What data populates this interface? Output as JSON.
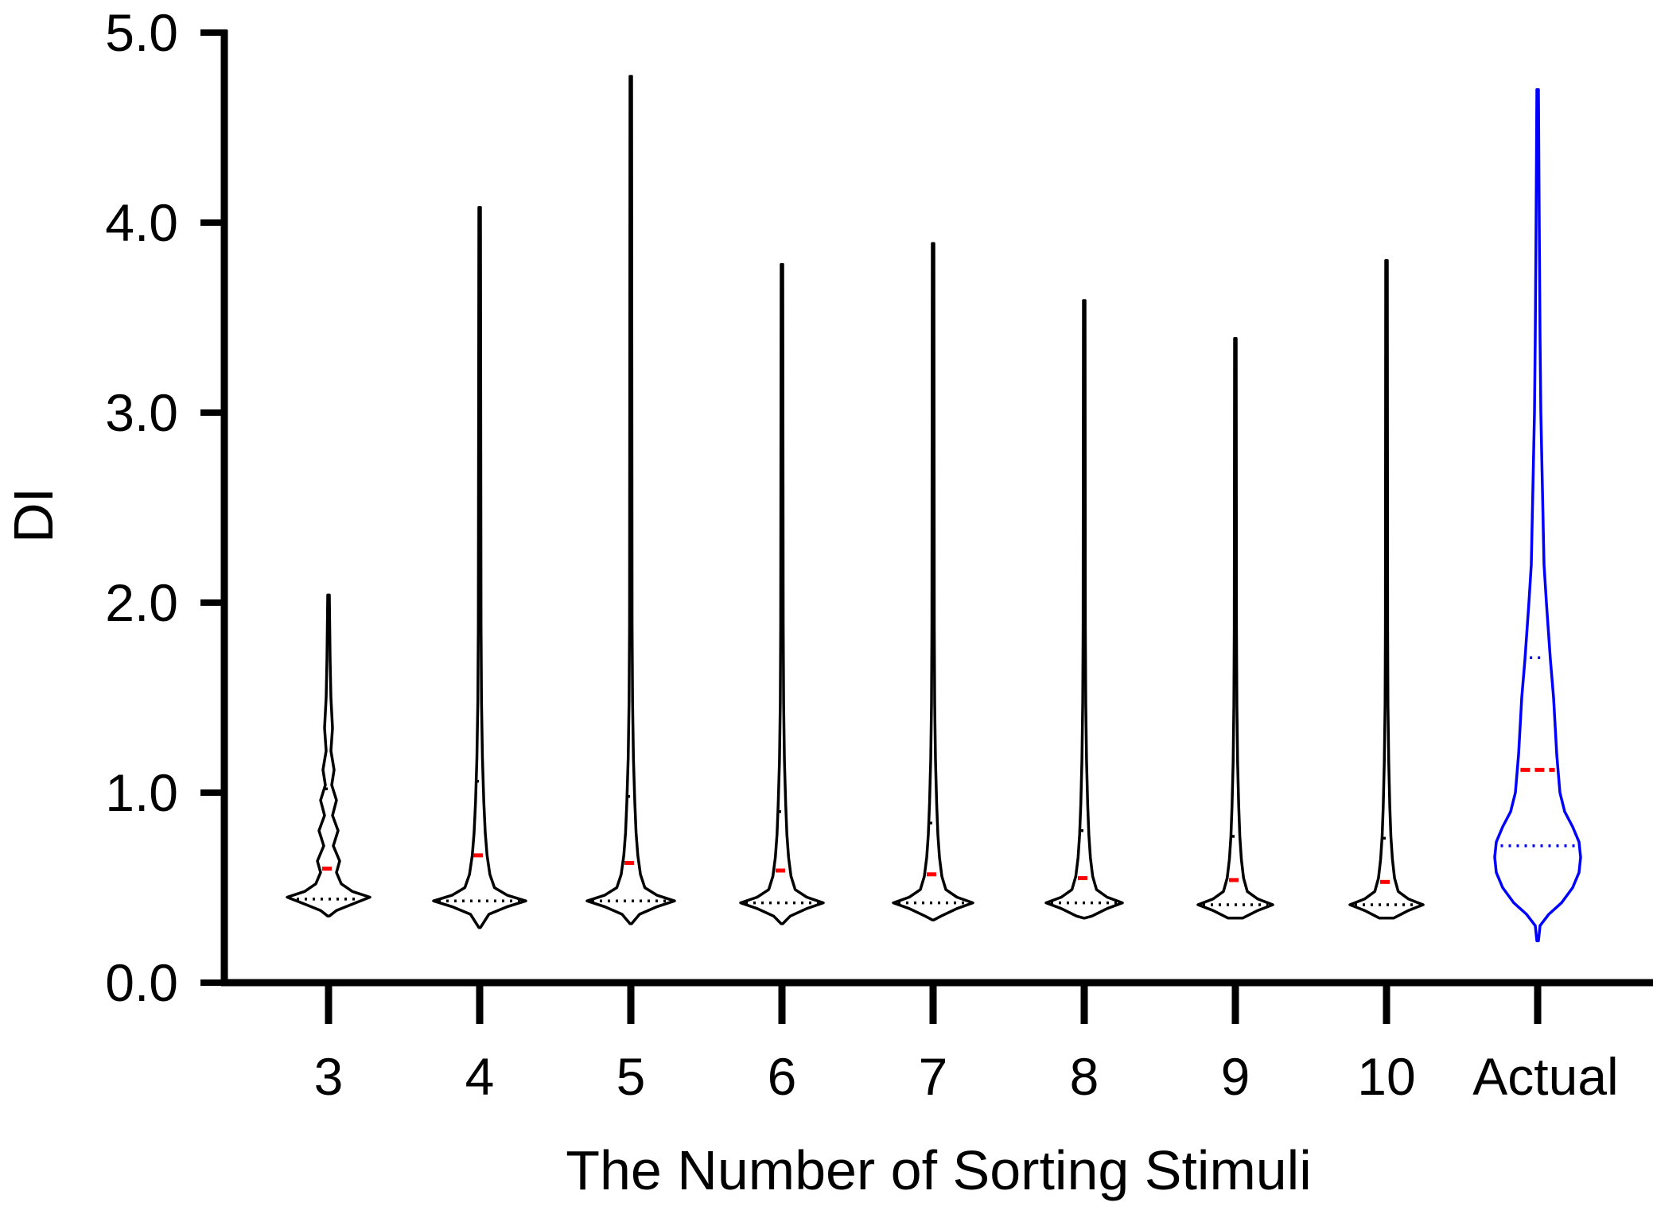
{
  "chart_data": {
    "type": "violin",
    "xlabel": "The  Number of Sorting Stimuli",
    "ylabel": "DI",
    "ylim": [
      0,
      5
    ],
    "yticks": [
      "0.0",
      "1.0",
      "2.0",
      "3.0",
      "4.0",
      "5.0"
    ],
    "categories": [
      "3",
      "4",
      "5",
      "6",
      "7",
      "8",
      "9",
      "10",
      "Actual"
    ],
    "series": [
      {
        "category": "3",
        "min": 0.35,
        "max": 2.04,
        "q1": 0.44,
        "median": 0.6,
        "q3": 1.02,
        "color": "#000000"
      },
      {
        "category": "4",
        "min": 0.29,
        "max": 4.08,
        "q1": 0.43,
        "median": 0.67,
        "q3": 1.06,
        "color": "#000000"
      },
      {
        "category": "5",
        "min": 0.31,
        "max": 4.77,
        "q1": 0.43,
        "median": 0.63,
        "q3": 0.98,
        "color": "#000000"
      },
      {
        "category": "6",
        "min": 0.31,
        "max": 3.78,
        "q1": 0.42,
        "median": 0.59,
        "q3": 0.9,
        "color": "#000000"
      },
      {
        "category": "7",
        "min": 0.33,
        "max": 3.89,
        "q1": 0.42,
        "median": 0.57,
        "q3": 0.84,
        "color": "#000000"
      },
      {
        "category": "8",
        "min": 0.34,
        "max": 3.59,
        "q1": 0.42,
        "median": 0.55,
        "q3": 0.8,
        "color": "#000000"
      },
      {
        "category": "9",
        "min": 0.34,
        "max": 3.39,
        "q1": 0.41,
        "median": 0.54,
        "q3": 0.77,
        "color": "#000000"
      },
      {
        "category": "10",
        "min": 0.34,
        "max": 3.8,
        "q1": 0.41,
        "median": 0.53,
        "q3": 0.76,
        "color": "#000000"
      },
      {
        "category": "Actual",
        "min": 0.22,
        "max": 4.7,
        "q1": 0.72,
        "median": 1.12,
        "q3": 1.71,
        "color": "#0000ff"
      }
    ],
    "median_line_color": "#ff0000",
    "grid": false,
    "legend": "none"
  }
}
